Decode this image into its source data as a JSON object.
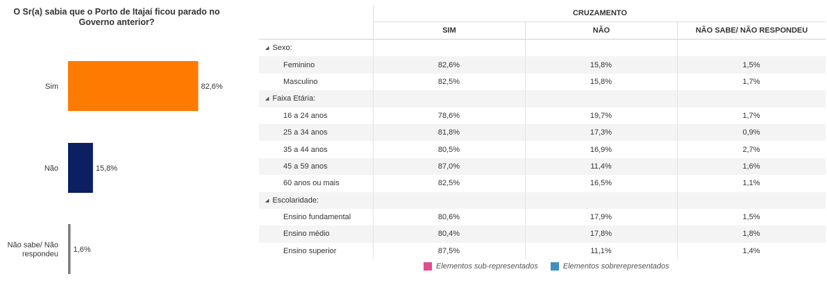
{
  "chart_data": {
    "type": "bar",
    "orientation": "horizontal",
    "title": "O Sr(a) sabia que o Porto de Itajaí ficou parado no Governo anterior?",
    "categories": [
      "Sim",
      "Não",
      "Não sabe/ Não respondeu"
    ],
    "category_lines": [
      [
        "Sim"
      ],
      [
        "Não"
      ],
      [
        "Não sabe/ Não",
        "respondeu"
      ]
    ],
    "values": [
      82.6,
      15.8,
      1.6
    ],
    "value_labels": [
      "82,6%",
      "15,8%",
      "1,6%"
    ],
    "colors": [
      "#ff7a00",
      "#0b1f62",
      "#7f7f7f"
    ],
    "xlim": [
      0,
      100
    ],
    "grid": false
  },
  "table": {
    "super_header": "CRUZAMENTO",
    "columns": [
      "SIM",
      "NÃO",
      "NÃO SABE/ NÃO RESPONDEU"
    ],
    "rows": [
      {
        "type": "group",
        "label": "Sexo:"
      },
      {
        "type": "data",
        "label": "Feminino",
        "values": [
          "82,6%",
          "15,8%",
          "1,5%"
        ]
      },
      {
        "type": "data",
        "label": "Masculino",
        "values": [
          "82,5%",
          "15,8%",
          "1,7%"
        ]
      },
      {
        "type": "group",
        "label": "Faixa Etária:"
      },
      {
        "type": "data",
        "label": "16 a 24 anos",
        "values": [
          "78,6%",
          "19,7%",
          "1,7%"
        ]
      },
      {
        "type": "data",
        "label": "25 a 34 anos",
        "values": [
          "81,8%",
          "17,3%",
          "0,9%"
        ]
      },
      {
        "type": "data",
        "label": "35 a 44 anos",
        "values": [
          "80,5%",
          "16,9%",
          "2,7%"
        ]
      },
      {
        "type": "data",
        "label": "45 a 59 anos",
        "values": [
          "87,0%",
          "11,4%",
          "1,6%"
        ]
      },
      {
        "type": "data",
        "label": "60 anos ou mais",
        "values": [
          "82,5%",
          "16,5%",
          "1,1%"
        ]
      },
      {
        "type": "group",
        "label": "Escolaridade:"
      },
      {
        "type": "data",
        "label": "Ensino fundamental",
        "values": [
          "80,6%",
          "17,9%",
          "1,5%"
        ]
      },
      {
        "type": "data",
        "label": "Ensino médio",
        "values": [
          "80,4%",
          "17,8%",
          "1,8%"
        ]
      },
      {
        "type": "data",
        "label": "Ensino superior",
        "values": [
          "87,5%",
          "11,1%",
          "1,4%"
        ]
      }
    ]
  },
  "legend": [
    {
      "label": "Elementos sub-representados",
      "color": "#e24a8d"
    },
    {
      "label": "Elementos sobrerepresentados",
      "color": "#3f8fc0"
    }
  ]
}
